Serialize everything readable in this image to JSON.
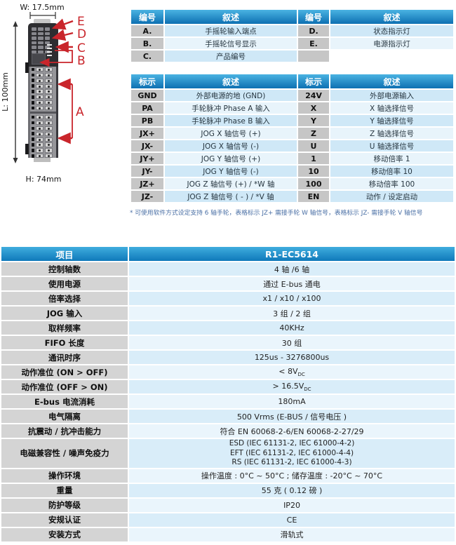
{
  "colors": {
    "header_blue_top": "#4ab3e2",
    "header_blue_bottom": "#0d70b2",
    "annotation_red": "#c9252b",
    "label_gray": "#c6c6c6",
    "row_blue": "#cfe8f7",
    "row_blue_light": "#e8f4fb",
    "footnote_blue": "#4a6fa5"
  },
  "diagram": {
    "dim_width": "W: 17.5mm",
    "dim_length": "L: 100mm",
    "dim_height": "H: 74mm",
    "callouts": {
      "a": "A",
      "b": "B",
      "c": "C",
      "d": "D",
      "e": "E"
    }
  },
  "legend_table": {
    "headers": [
      "编号",
      "叙述",
      "编号",
      "叙述"
    ],
    "rows": [
      [
        "A.",
        "手摇轮输入端点",
        "D.",
        "状态指示灯"
      ],
      [
        "B.",
        "手摇轮信号显示",
        "E.",
        "电源指示灯"
      ],
      [
        "C.",
        "产品编号",
        "",
        ""
      ]
    ]
  },
  "signal_table": {
    "headers": [
      "标示",
      "叙述",
      "标示",
      "叙述"
    ],
    "rows": [
      [
        "GND",
        "外部电源的地 (GND)",
        "24V",
        "外部电源输入"
      ],
      [
        "PA",
        "手轮脉冲 Phase A 输入",
        "X",
        "X 轴选择信号"
      ],
      [
        "PB",
        "手轮脉冲 Phase B 输入",
        "Y",
        "Y 轴选择信号"
      ],
      [
        "JX+",
        "JOG X 轴信号 (+)",
        "Z",
        "Z 轴选择信号"
      ],
      [
        "JX-",
        "JOG X 轴信号 (-)",
        "U",
        "U 轴选择信号"
      ],
      [
        "JY+",
        "JOG Y 轴信号 (+)",
        "1",
        "移动倍率 1"
      ],
      [
        "JY-",
        "JOG Y 轴信号 (-)",
        "10",
        "移动倍率 10"
      ],
      [
        "JZ+",
        "JOG Z 轴信号 (+) / *W 轴",
        "100",
        "移动倍率 100"
      ],
      [
        "JZ-",
        "JOG Z 轴信号 ( - ) / *V 轴",
        "EN",
        "动作 / 设定启动"
      ]
    ],
    "footnote": "* 可使用软件方式设定支持 6 轴手轮，表格标示 JZ+ 需接手轮 W 轴信号，表格标示 JZ- 需接手轮 V 轴信号"
  },
  "spec_table": {
    "item_header": "项目",
    "model_header": "R1-EC5614",
    "rows": [
      {
        "label": "控制轴数",
        "value": "4 轴 /6 轴"
      },
      {
        "label": "使用电源",
        "value": "通过 E-bus 通电"
      },
      {
        "label": "倍率选择",
        "value": "x1 / x10 / x100"
      },
      {
        "label": "JOG 输入",
        "value": "3 组 / 2 组"
      },
      {
        "label": "取样频率",
        "value": "40KHz"
      },
      {
        "label": "FIFO 长度",
        "value": "30 组"
      },
      {
        "label": "通讯时序",
        "value": "125us - 3276800us"
      },
      {
        "label": "动作准位 (ON > OFF)",
        "value": "< 8V",
        "sub": "DC"
      },
      {
        "label": "动作准位 (OFF > ON)",
        "value": "> 16.5V",
        "sub": "DC"
      },
      {
        "label": "E-bus 电流消耗",
        "value": "180mA"
      },
      {
        "label": "电气隔离",
        "value": "500 Vrms (E-BUS / 信号电压 )"
      },
      {
        "label": "抗震动 / 抗冲击能力",
        "value": "符合 EN 60068-2-6/EN 60068-2-27/29"
      },
      {
        "label": "电磁兼容性 / 噪声免疫力",
        "lines": [
          "ESD (IEC 61131-2, IEC 61000-4-2)",
          "EFT (IEC 61131-2, IEC 61000-4-4)",
          "RS (IEC 61131-2, IEC 61000-4-3)"
        ]
      },
      {
        "label": "操作环境",
        "value": "操作温度 : 0°C ~ 50°C ; 储存温度 : -20°C ~ 70°C"
      },
      {
        "label": "重量",
        "value": "55 克 ( 0.12 磅 )"
      },
      {
        "label": "防护等级",
        "value": "IP20"
      },
      {
        "label": "安规认证",
        "value": "CE"
      },
      {
        "label": "安装方式",
        "value": "滑轨式"
      }
    ]
  }
}
